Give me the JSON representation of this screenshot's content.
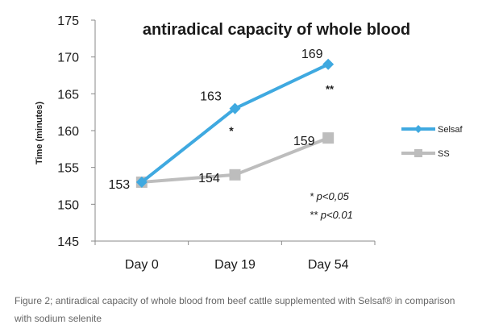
{
  "chart_data": {
    "type": "line",
    "title": "antiradical capacity of whole blood",
    "ylabel": "Time (minutes)",
    "xlabel": "",
    "categories": [
      "Day 0",
      "Day 19",
      "Day 54"
    ],
    "ylim": [
      145,
      175
    ],
    "yticks": [
      "145",
      "150",
      "155",
      "160",
      "165",
      "170",
      "175"
    ],
    "series": [
      {
        "name": "Selsaf",
        "values": [
          153,
          163,
          169
        ],
        "labels": [
          "153",
          "163",
          "169"
        ],
        "color": "#3fa9e0",
        "marker": "diamond"
      },
      {
        "name": "SS",
        "values": [
          153,
          154,
          159
        ],
        "labels": [
          "",
          "154",
          "159"
        ],
        "color": "#bdbdbd",
        "marker": "square"
      }
    ],
    "annotations": [
      "*",
      "**"
    ],
    "significance": [
      "* p<0,05",
      "** p<0.01"
    ],
    "legend_position": "right",
    "grid": false
  },
  "caption": {
    "line1": "Figure 2; antiradical capacity of whole blood from beef cattle supplemented with Selsaf® in comparison",
    "line2": "with sodium selenite"
  }
}
